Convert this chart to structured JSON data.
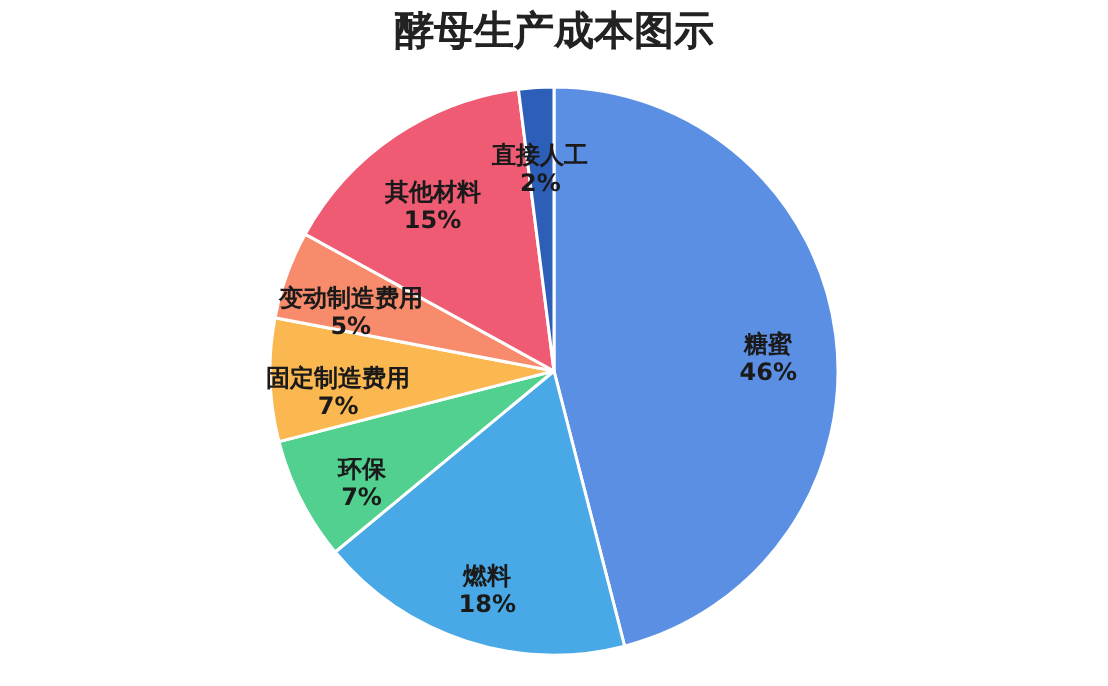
{
  "chart_data": {
    "type": "pie",
    "title": "酵母生产成本图示",
    "categories": [
      "糖蜜",
      "燃料",
      "环保",
      "固定制造费用",
      "变动制造费用",
      "其他材料",
      "直接人工"
    ],
    "values": [
      46,
      18,
      7,
      7,
      5,
      15,
      2
    ],
    "value_labels": [
      "46%",
      "18%",
      "7%",
      "7%",
      "5%",
      "15%",
      "2%"
    ],
    "colors": [
      "#5b8fe3",
      "#49a9e6",
      "#52d08f",
      "#fbb851",
      "#f78b6b",
      "#ee5b72",
      "#2d5fb8"
    ]
  }
}
